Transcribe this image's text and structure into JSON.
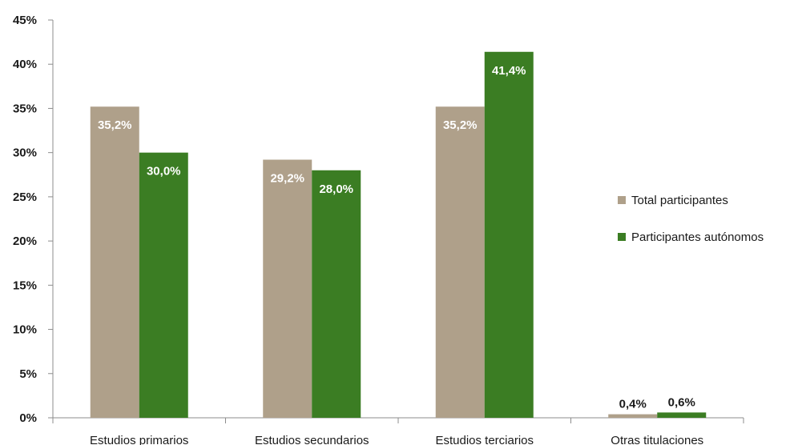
{
  "chart_data": {
    "type": "bar",
    "categories": [
      "Estudios primarios",
      "Estudios secundarios",
      "Estudios terciarios",
      "Otras titulaciones"
    ],
    "series": [
      {
        "name": "Total participantes",
        "color": "#afa08a",
        "values": [
          35.2,
          29.2,
          35.2,
          0.4
        ],
        "labels": [
          "35,2%",
          "29,2%",
          "35,2%",
          "0,4%"
        ]
      },
      {
        "name": "Participantes autónomos",
        "color": "#3b7d23",
        "values": [
          30.0,
          28.0,
          41.4,
          0.6
        ],
        "labels": [
          "30,0%",
          "28,0%",
          "41,4%",
          "0,6%"
        ]
      }
    ],
    "ylim": [
      0,
      45
    ],
    "yticks": [
      0,
      5,
      10,
      15,
      20,
      25,
      30,
      35,
      40,
      45
    ],
    "ytick_labels": [
      "0%",
      "5%",
      "10%",
      "15%",
      "20%",
      "25%",
      "30%",
      "35%",
      "40%",
      "45%"
    ],
    "title": "",
    "xlabel": "",
    "ylabel": "",
    "grid": false,
    "legend_position": "right",
    "label_colors": {
      "inside": "#ffffff",
      "outside": "#1a1a1a"
    }
  }
}
